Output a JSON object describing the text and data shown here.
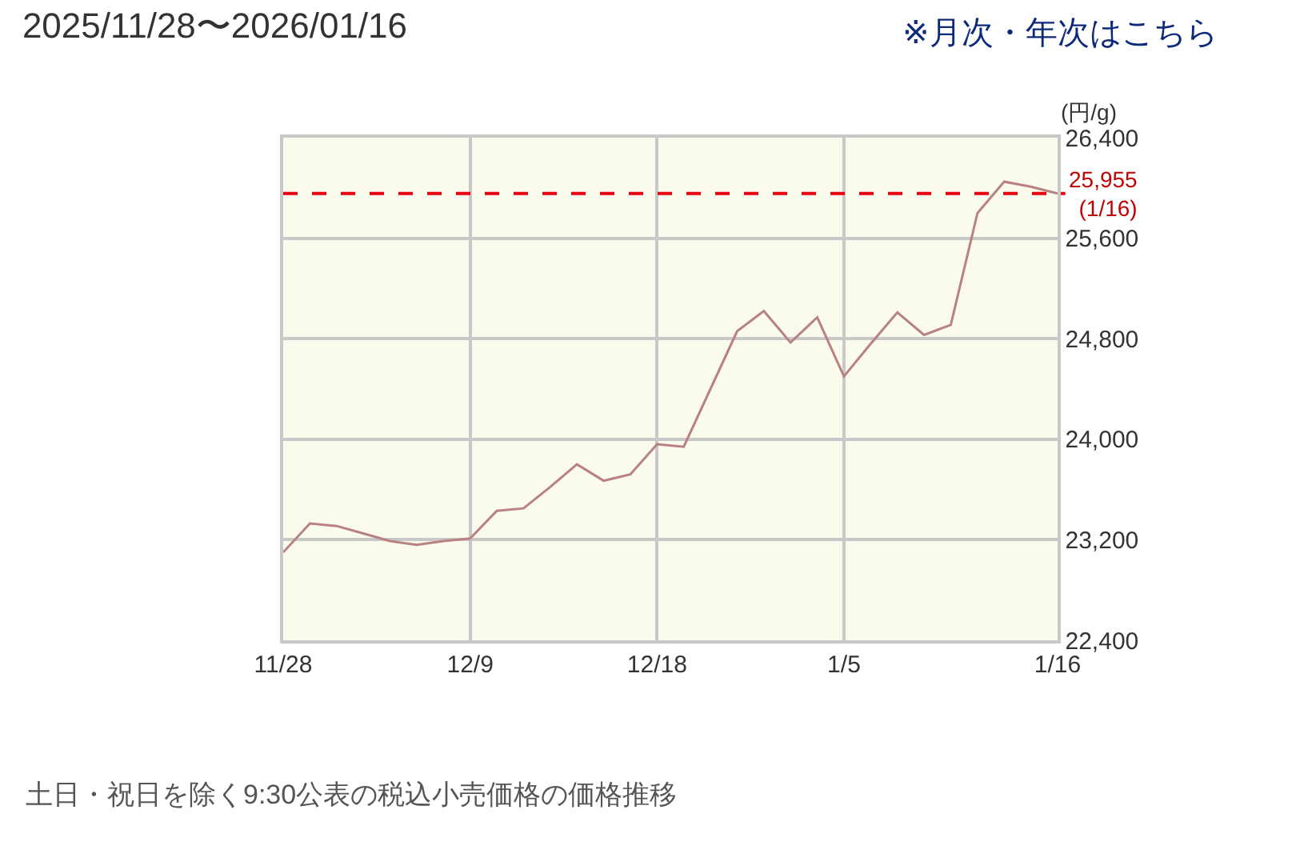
{
  "chart_data": {
    "type": "line",
    "title": "2025/11/28〜2026/01/16",
    "ylabel": "(円/g)",
    "annotations": [
      "※月次・年次はこちら",
      "土日・祝日を除く9:30公表の税込小売価格の価格推移"
    ],
    "categories": [
      "11/28",
      null,
      null,
      null,
      null,
      null,
      null,
      "12/9",
      null,
      null,
      null,
      null,
      null,
      null,
      "12/18",
      null,
      null,
      null,
      null,
      null,
      null,
      "1/5",
      null,
      null,
      null,
      null,
      null,
      null,
      null,
      "1/16"
    ],
    "series": [
      {
        "color": "#b88282",
        "values": [
          23100,
          23330,
          23310,
          23250,
          23190,
          23160,
          23190,
          23210,
          23430,
          23450,
          23620,
          23800,
          23670,
          23720,
          23960,
          23940,
          24400,
          24860,
          25020,
          24770,
          24970,
          24500,
          24760,
          25010,
          24830,
          24910,
          25800,
          26050,
          26010,
          25955
        ]
      }
    ],
    "ylim": [
      22400,
      26400
    ],
    "yticks": [
      {
        "value": 22400,
        "label": "22,400"
      },
      {
        "value": 23200,
        "label": "23,200"
      },
      {
        "value": 24000,
        "label": "24,000"
      },
      {
        "value": 24800,
        "label": "24,800"
      },
      {
        "value": 25600,
        "label": "25,600"
      },
      {
        "value": 26400,
        "label": "26,400"
      }
    ],
    "ref_lines": [
      {
        "axis": "y",
        "value": 25955,
        "label": "25,955\n(1/16)",
        "color": "#e60012",
        "line_style": "dashed"
      }
    ],
    "grid": true,
    "legend": false,
    "marker": "none",
    "line_style": "solid"
  }
}
